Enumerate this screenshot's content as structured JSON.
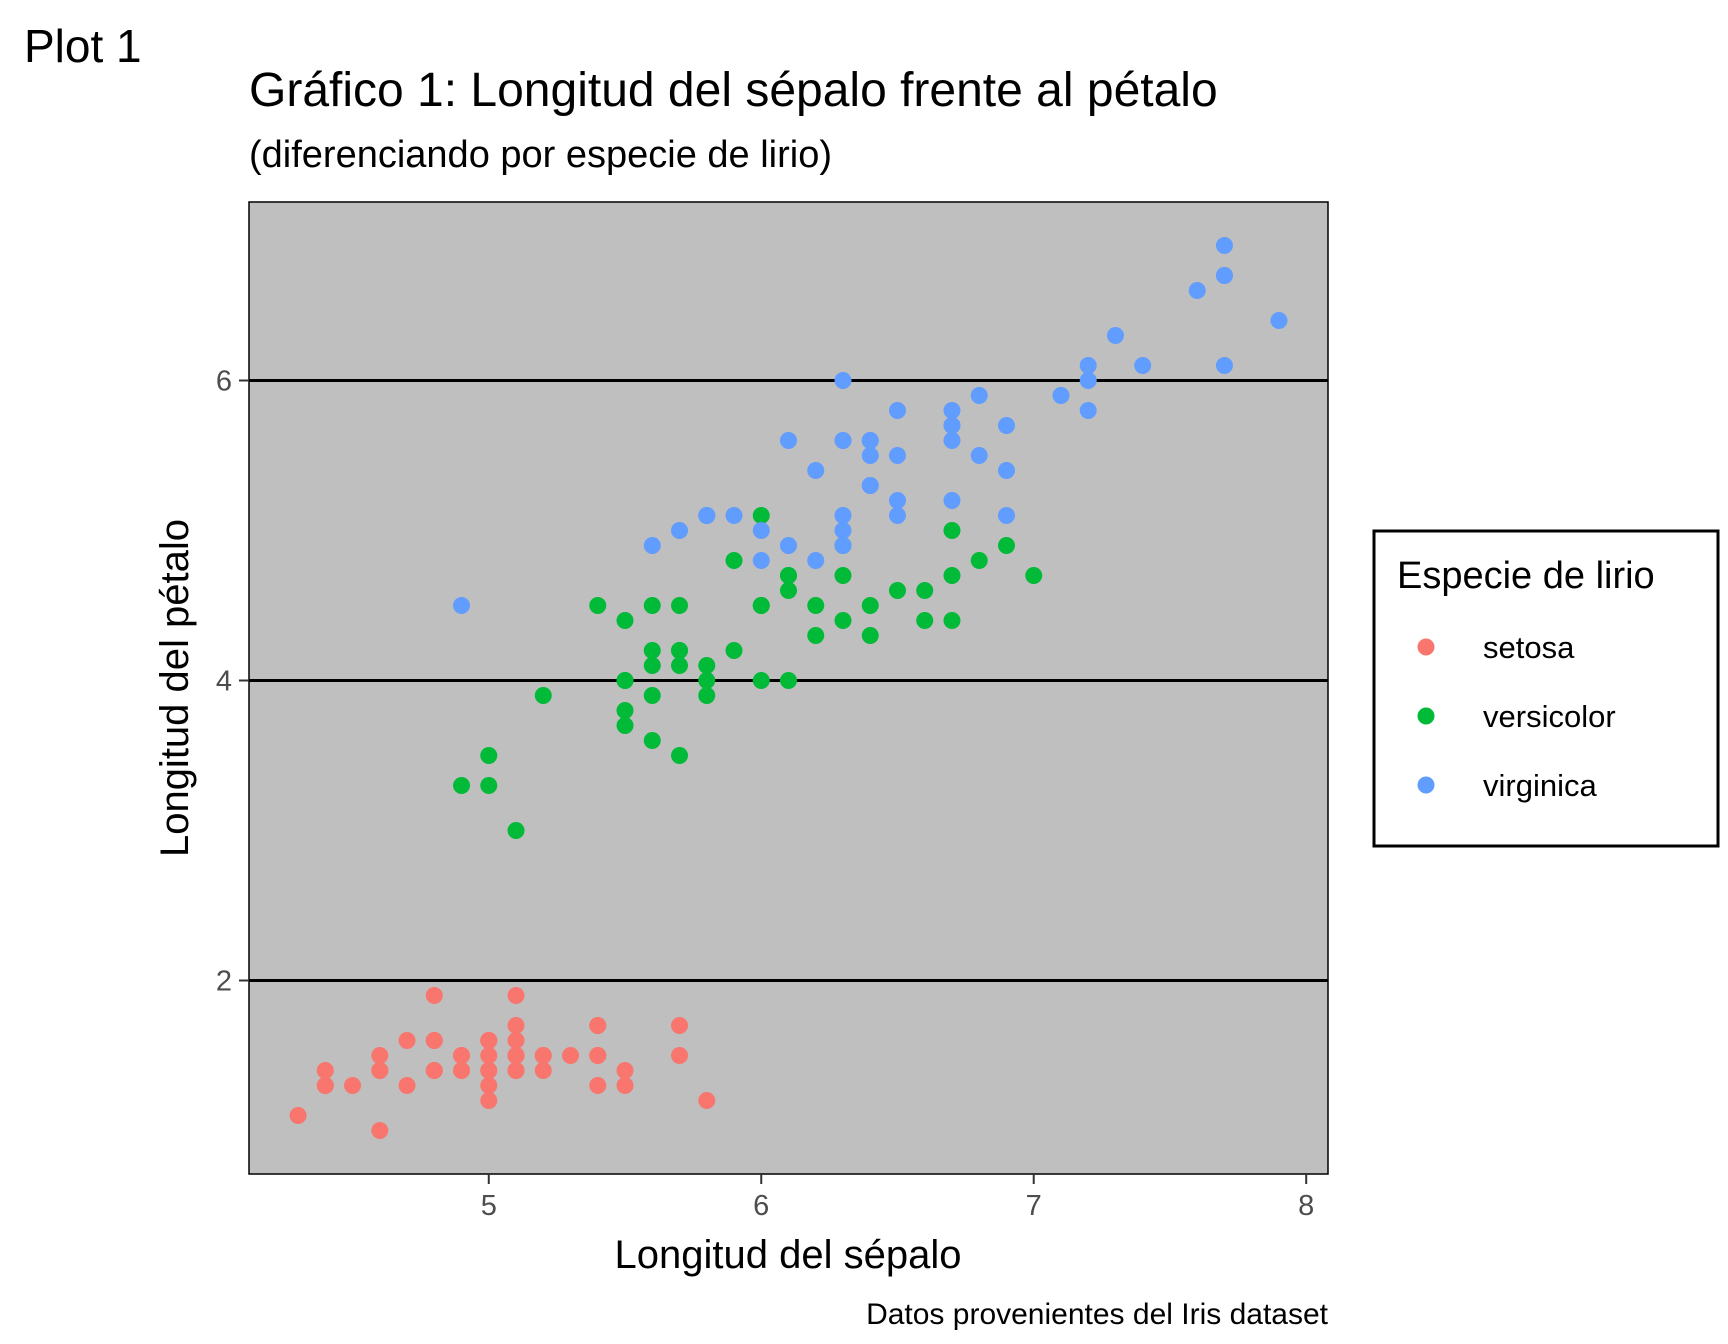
{
  "plot_tag": "Plot 1",
  "chart_data": {
    "type": "scatter",
    "title": "Gráfico 1: Longitud del sépalo frente al pétalo",
    "subtitle": "(diferenciando por especie de lirio)",
    "xlabel": "Longitud del sépalo",
    "ylabel": "Longitud del pétalo",
    "caption": "Datos provenientes del Iris dataset",
    "xlim": [
      4.12,
      8.08
    ],
    "ylim": [
      0.71,
      7.19
    ],
    "xticks": [
      "5",
      "6",
      "7",
      "8"
    ],
    "yticks": [
      "2",
      "4",
      "6"
    ],
    "grid": "horizontal major lines",
    "legend": {
      "title": "Especie de lirio",
      "position": "right"
    },
    "series": [
      {
        "name": "setosa",
        "color": "#F8766D",
        "points": [
          [
            5.1,
            1.4
          ],
          [
            4.9,
            1.4
          ],
          [
            4.7,
            1.3
          ],
          [
            4.6,
            1.5
          ],
          [
            5.0,
            1.4
          ],
          [
            5.4,
            1.7
          ],
          [
            4.6,
            1.4
          ],
          [
            5.0,
            1.5
          ],
          [
            4.4,
            1.4
          ],
          [
            4.9,
            1.5
          ],
          [
            5.4,
            1.5
          ],
          [
            4.8,
            1.6
          ],
          [
            4.8,
            1.4
          ],
          [
            4.3,
            1.1
          ],
          [
            5.8,
            1.2
          ],
          [
            5.7,
            1.5
          ],
          [
            5.4,
            1.3
          ],
          [
            5.1,
            1.4
          ],
          [
            5.7,
            1.7
          ],
          [
            5.1,
            1.5
          ],
          [
            5.4,
            1.7
          ],
          [
            5.1,
            1.5
          ],
          [
            4.6,
            1.0
          ],
          [
            5.1,
            1.7
          ],
          [
            4.8,
            1.9
          ],
          [
            5.0,
            1.6
          ],
          [
            5.0,
            1.6
          ],
          [
            5.2,
            1.5
          ],
          [
            5.2,
            1.4
          ],
          [
            4.7,
            1.6
          ],
          [
            4.8,
            1.6
          ],
          [
            5.4,
            1.5
          ],
          [
            5.2,
            1.5
          ],
          [
            5.5,
            1.4
          ],
          [
            4.9,
            1.5
          ],
          [
            5.0,
            1.2
          ],
          [
            5.5,
            1.3
          ],
          [
            4.9,
            1.4
          ],
          [
            4.4,
            1.3
          ],
          [
            5.1,
            1.5
          ],
          [
            5.0,
            1.3
          ],
          [
            4.5,
            1.3
          ],
          [
            4.4,
            1.3
          ],
          [
            5.0,
            1.6
          ],
          [
            5.1,
            1.9
          ],
          [
            4.8,
            1.4
          ],
          [
            5.1,
            1.6
          ],
          [
            4.6,
            1.4
          ],
          [
            5.3,
            1.5
          ],
          [
            5.0,
            1.4
          ]
        ]
      },
      {
        "name": "versicolor",
        "color": "#00BA38",
        "points": [
          [
            7.0,
            4.7
          ],
          [
            6.4,
            4.5
          ],
          [
            6.9,
            4.9
          ],
          [
            5.5,
            4.0
          ],
          [
            6.5,
            4.6
          ],
          [
            5.7,
            4.5
          ],
          [
            6.3,
            4.7
          ],
          [
            4.9,
            3.3
          ],
          [
            6.6,
            4.6
          ],
          [
            5.2,
            3.9
          ],
          [
            5.0,
            3.5
          ],
          [
            5.9,
            4.2
          ],
          [
            6.0,
            4.0
          ],
          [
            6.1,
            4.7
          ],
          [
            5.6,
            3.6
          ],
          [
            6.7,
            4.4
          ],
          [
            5.6,
            4.5
          ],
          [
            5.8,
            4.1
          ],
          [
            6.2,
            4.5
          ],
          [
            5.6,
            3.9
          ],
          [
            5.9,
            4.8
          ],
          [
            6.1,
            4.0
          ],
          [
            6.3,
            4.9
          ],
          [
            6.1,
            4.7
          ],
          [
            6.4,
            4.3
          ],
          [
            6.6,
            4.4
          ],
          [
            6.8,
            4.8
          ],
          [
            6.7,
            5.0
          ],
          [
            6.0,
            4.5
          ],
          [
            5.7,
            3.5
          ],
          [
            5.5,
            3.8
          ],
          [
            5.5,
            3.7
          ],
          [
            5.8,
            3.9
          ],
          [
            6.0,
            5.1
          ],
          [
            5.4,
            4.5
          ],
          [
            6.0,
            4.5
          ],
          [
            6.7,
            4.7
          ],
          [
            6.3,
            4.4
          ],
          [
            5.6,
            4.1
          ],
          [
            5.5,
            4.0
          ],
          [
            5.5,
            4.4
          ],
          [
            6.1,
            4.6
          ],
          [
            5.8,
            4.0
          ],
          [
            5.0,
            3.3
          ],
          [
            5.6,
            4.2
          ],
          [
            5.7,
            4.2
          ],
          [
            5.7,
            4.2
          ],
          [
            6.2,
            4.3
          ],
          [
            5.1,
            3.0
          ],
          [
            5.7,
            4.1
          ]
        ]
      },
      {
        "name": "virginica",
        "color": "#619CFF",
        "points": [
          [
            6.3,
            6.0
          ],
          [
            5.8,
            5.1
          ],
          [
            7.1,
            5.9
          ],
          [
            6.3,
            5.6
          ],
          [
            6.5,
            5.8
          ],
          [
            7.6,
            6.6
          ],
          [
            4.9,
            4.5
          ],
          [
            7.3,
            6.3
          ],
          [
            6.7,
            5.8
          ],
          [
            7.2,
            6.1
          ],
          [
            6.5,
            5.1
          ],
          [
            6.4,
            5.3
          ],
          [
            6.8,
            5.5
          ],
          [
            5.7,
            5.0
          ],
          [
            5.8,
            5.1
          ],
          [
            6.4,
            5.3
          ],
          [
            6.5,
            5.5
          ],
          [
            7.7,
            6.7
          ],
          [
            7.7,
            6.9
          ],
          [
            6.0,
            5.0
          ],
          [
            6.9,
            5.7
          ],
          [
            5.6,
            4.9
          ],
          [
            7.7,
            6.7
          ],
          [
            6.3,
            4.9
          ],
          [
            6.7,
            5.7
          ],
          [
            7.2,
            6.0
          ],
          [
            6.2,
            4.8
          ],
          [
            6.1,
            4.9
          ],
          [
            6.4,
            5.6
          ],
          [
            7.2,
            5.8
          ],
          [
            7.4,
            6.1
          ],
          [
            7.9,
            6.4
          ],
          [
            6.4,
            5.6
          ],
          [
            6.3,
            5.1
          ],
          [
            6.1,
            5.6
          ],
          [
            7.7,
            6.1
          ],
          [
            6.3,
            5.6
          ],
          [
            6.4,
            5.5
          ],
          [
            6.0,
            4.8
          ],
          [
            6.9,
            5.4
          ],
          [
            6.7,
            5.6
          ],
          [
            6.9,
            5.1
          ],
          [
            5.8,
            5.1
          ],
          [
            6.8,
            5.9
          ],
          [
            6.7,
            5.7
          ],
          [
            6.7,
            5.2
          ],
          [
            6.3,
            5.0
          ],
          [
            6.5,
            5.2
          ],
          [
            6.2,
            5.4
          ],
          [
            5.9,
            5.1
          ]
        ]
      }
    ]
  }
}
